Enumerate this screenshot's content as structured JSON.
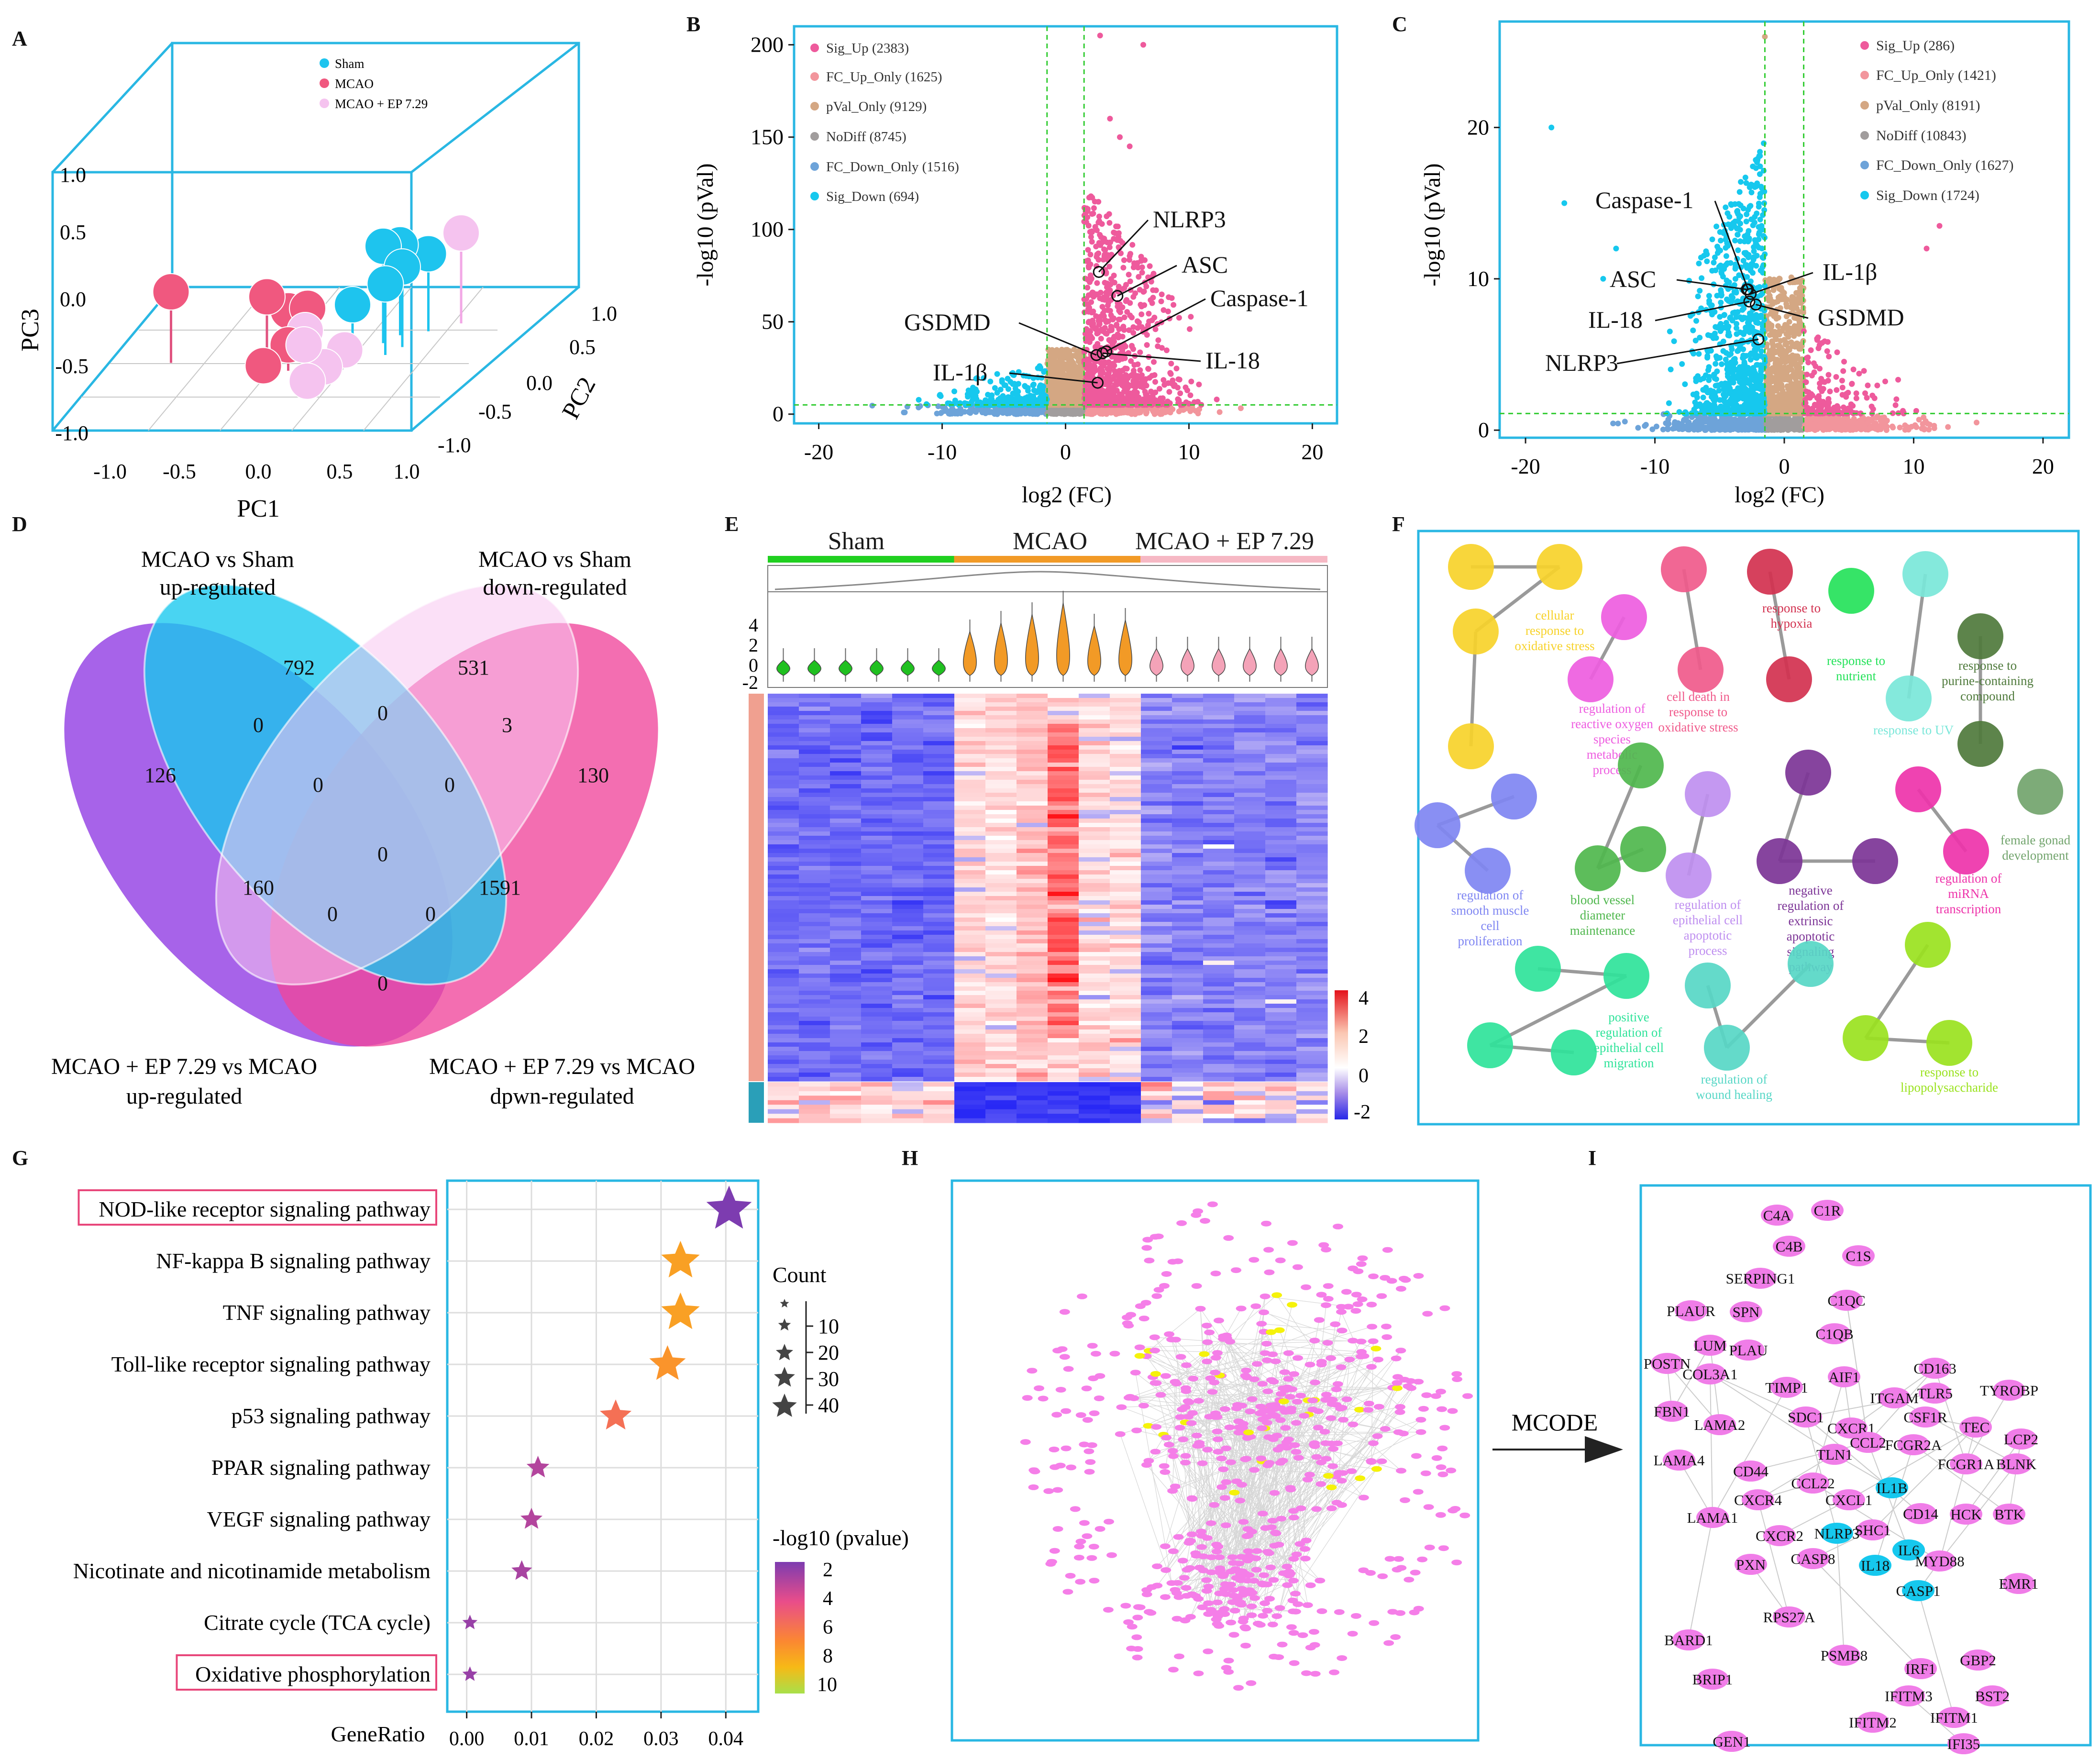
{
  "panel_labels": [
    "A",
    "B",
    "C",
    "D",
    "E",
    "F",
    "G",
    "H",
    "I"
  ],
  "colors": {
    "frame": "#29b7e3",
    "sham": "#1ec4ee",
    "mcao": "#f0587f",
    "mcao_ep": "#f5c3ef",
    "sig_up": "#ee5a9c",
    "fc_up_only": "#f2959c",
    "pval_only": "#d4a783",
    "nodiff": "#a19d9d",
    "fc_down_only": "#6da3d9",
    "sig_down": "#16c8ee",
    "guide": "#33cc33"
  },
  "chart_data": [
    {
      "id": "A",
      "type": "scatter3d",
      "title": "",
      "xlabel": "PC1",
      "ylabel": "PC2",
      "zlabel": "PC3",
      "ticks_x": [
        "-1.0",
        "-0.5",
        "0.0",
        "0.5",
        "1.0"
      ],
      "ticks_y": [
        "-1.0",
        "-0.5",
        "0.0",
        "0.5",
        "1.0"
      ],
      "ticks_z": [
        "-1.0",
        "-0.5",
        "0.0",
        "0.5",
        "1.0"
      ],
      "legend": [
        "Sham",
        "MCAO",
        "MCAO + EP 7.29"
      ],
      "series": [
        {
          "name": "Sham",
          "points": [
            [
              0.65,
              0.35,
              0.75
            ],
            [
              0.7,
              0.45,
              0.7
            ],
            [
              0.75,
              0.2,
              0.55
            ],
            [
              0.85,
              0.5,
              0.6
            ],
            [
              0.6,
              0.1,
              0.45
            ],
            [
              0.8,
              0.3,
              0.62
            ]
          ]
        },
        {
          "name": "MCAO",
          "points": [
            [
              -0.55,
              0.1,
              0.55
            ],
            [
              0.0,
              0.2,
              0.45
            ],
            [
              0.2,
              0.3,
              0.3
            ],
            [
              0.15,
              -0.1,
              0.1
            ],
            [
              0.05,
              0.35,
              0.25
            ],
            [
              0.25,
              0.0,
              0.2
            ]
          ]
        },
        {
          "name": "MCAO + EP 7.29",
          "points": [
            [
              0.35,
              0.0,
              0.2
            ],
            [
              0.45,
              0.05,
              0.0
            ],
            [
              0.4,
              -0.05,
              -0.05
            ],
            [
              1.0,
              0.6,
              0.7
            ],
            [
              0.55,
              0.1,
              0.1
            ],
            [
              0.3,
              0.1,
              0.25
            ]
          ]
        }
      ]
    },
    {
      "id": "B",
      "type": "scatter",
      "title": "",
      "xlabel": "log2 (FC)",
      "ylabel": "-log10 (pVal)",
      "xlim": [
        -22,
        22
      ],
      "ylim": [
        -5,
        210
      ],
      "xticks": [
        "-20",
        "-10",
        "0",
        "10",
        "20"
      ],
      "yticks": [
        "0",
        "50",
        "100",
        "150",
        "200"
      ],
      "legend": [
        "Sig_Up (2383)",
        "FC_Up_Only (1625)",
        "pVal_Only (9129)",
        "NoDiff (8745)",
        "FC_Down_Only (1516)",
        "Sig_Down (694)"
      ],
      "annotations": [
        "NLRP3",
        "ASC",
        "Caspase-1",
        "GSDMD",
        "IL-18",
        "IL-1β"
      ],
      "annotation_points": [
        [
          2.7,
          77
        ],
        [
          4.2,
          64
        ],
        [
          3.3,
          34
        ],
        [
          2.5,
          32
        ],
        [
          3.0,
          33
        ],
        [
          2.6,
          17
        ]
      ]
    },
    {
      "id": "C",
      "type": "scatter",
      "title": "",
      "xlabel": "log2 (FC)",
      "ylabel": "-log10 (pVal)",
      "xlim": [
        -22,
        22
      ],
      "ylim": [
        -0.5,
        27
      ],
      "xticks": [
        "-20",
        "-10",
        "0",
        "10",
        "20"
      ],
      "yticks": [
        "0",
        "10",
        "20"
      ],
      "legend": [
        "Sig_Up (286)",
        "FC_Up_Only (1421)",
        "pVal_Only (8191)",
        "NoDiff (10843)",
        "FC_Down_Only (1627)",
        "Sig_Down (1724)"
      ],
      "annotations": [
        "Caspase-1",
        "IL-1β",
        "ASC",
        "GSDMD",
        "IL-18",
        "NLRP3"
      ],
      "annotation_points": [
        [
          -2.8,
          9.3
        ],
        [
          -2.6,
          9.0
        ],
        [
          -2.9,
          9.3
        ],
        [
          -2.2,
          8.3
        ],
        [
          -2.7,
          8.5
        ],
        [
          -2.0,
          6.0
        ]
      ]
    },
    {
      "id": "D",
      "type": "venn",
      "sets": [
        "MCAO vs Sham up-regulated",
        "MCAO vs Sham down-regulated",
        "MCAO + EP 7.29 vs MCAO up-regulated",
        "MCAO + EP 7.29 vs MCAO dpwn-regulated"
      ],
      "region_values": [
        "792",
        "531",
        "126",
        "130",
        "0",
        "0",
        "3",
        "0",
        "0",
        "160",
        "1591",
        "0",
        "0",
        "0",
        "0"
      ]
    },
    {
      "id": "E",
      "type": "heatmap",
      "groups": [
        "Sham",
        "MCAO",
        "MCAO + EP 7.29"
      ],
      "violin_yticks": [
        "4",
        "2",
        "0",
        "-2"
      ],
      "colorbar_ticks": [
        "4",
        "2",
        "0",
        "-2"
      ],
      "range": [
        -2,
        4
      ]
    },
    {
      "id": "F",
      "type": "network",
      "clusters": [
        "cellular response to oxidative stress",
        "regulation of reactive oxygen species metabolic process",
        "cell death in response to oxidative stress",
        "response to hypoxia",
        "response to nutrient",
        "response to UV",
        "response to purine-containing compound",
        "female gonad development",
        "regulation of smooth muscle cell proliferation",
        "blood vessel diameter maintenance",
        "regulation of epithelial cell apoptotic process",
        "negative regulation of extrinsic apoptotic signaling pathway",
        "regulation of miRNA transcription",
        "positive regulation of epithelial cell migration",
        "regulation of wound healing",
        "response to lipopolysaccharide"
      ]
    },
    {
      "id": "G",
      "type": "scatter",
      "title": "",
      "xlabel": "GeneRatio",
      "ylabel": "",
      "xlim": [
        -0.003,
        0.045
      ],
      "xticks": [
        "0.00",
        "0.01",
        "0.02",
        "0.03",
        "0.04"
      ],
      "categories": [
        "NOD-like receptor signaling pathway",
        "NF-kappa B signaling pathway",
        "TNF signaling pathway",
        "Toll-like receptor signaling pathway",
        "p53 signaling pathway",
        "PPAR signaling pathway",
        "VEGF signaling pathway",
        "Nicotinate and nicotinamide metabolism",
        "Citrate cycle (TCA cycle)",
        "Oxidative phosphorylation"
      ],
      "gene_ratio": [
        0.0405,
        0.033,
        0.033,
        0.031,
        0.023,
        0.011,
        0.01,
        0.0085,
        0.0005,
        0.0005
      ],
      "count": [
        45,
        35,
        35,
        32,
        25,
        12,
        11,
        9,
        1,
        1
      ],
      "neg_log10_p": [
        2.0,
        7.0,
        7.0,
        6.5,
        5.2,
        3.0,
        3.0,
        2.8,
        2.5,
        2.5
      ],
      "highlighted": [
        "NOD-like receptor signaling pathway",
        "Oxidative phosphorylation"
      ],
      "size_legend_title": "Count",
      "size_legend": [
        "10",
        "20",
        "30",
        "40"
      ],
      "color_legend_title": "-log10 (pvalue)",
      "color_legend": [
        "2",
        "4",
        "6",
        "8",
        "10"
      ]
    },
    {
      "id": "H",
      "type": "network"
    },
    {
      "id": "I",
      "type": "network",
      "arrow_label": "MCODE",
      "nodes": [
        "C4A",
        "C1R",
        "C4B",
        "C1S",
        "SERPING1",
        "PLAUR",
        "SPN",
        "C1QC",
        "C1QB",
        "LUM",
        "PLAU",
        "POSTN",
        "COL3A1",
        "CD163",
        "TIMP1",
        "AIF1",
        "ITGAM",
        "TLR5",
        "TYROBP",
        "FBN1",
        "LAMA2",
        "SDC1",
        "CXCR1",
        "CSF1R",
        "TEC",
        "LCP2",
        "CCL2",
        "FCGR2A",
        "TLN1",
        "CD44",
        "FCGR1A",
        "BLNK",
        "LAMA4",
        "CCL22",
        "CXCR4",
        "CXCL1",
        "IL1B",
        "LAMA1",
        "CD14",
        "HCK",
        "BTK",
        "CXCR2",
        "SHC1",
        "NLRP3",
        "CASP8",
        "IL6",
        "MYD88",
        "PXN",
        "IL18",
        "EMR1",
        "CASP1",
        "RPS27A",
        "BARD1",
        "PSMB8",
        "GBP2",
        "IRF1",
        "BRIP1",
        "IFITM3",
        "BST2",
        "IFITM2",
        "IFITM1",
        "GEN1",
        "IFI35"
      ],
      "highlight_nodes": [
        "IL1B",
        "NLRP3",
        "IL6",
        "IL18",
        "CASP1"
      ]
    }
  ]
}
